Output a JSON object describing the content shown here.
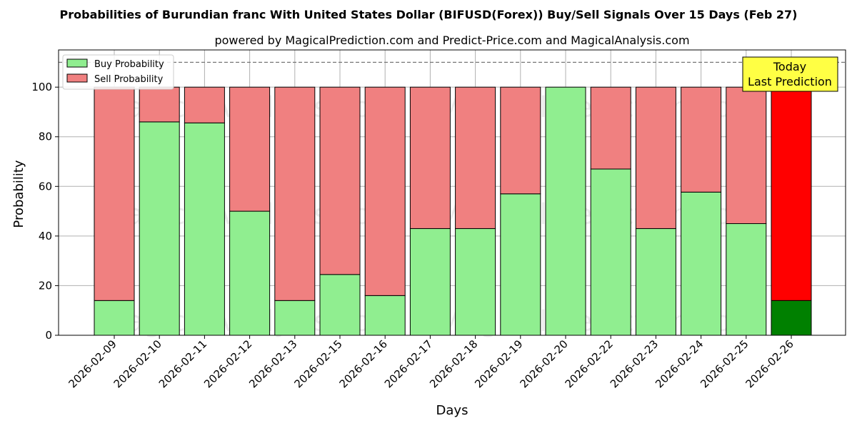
{
  "chart_data": {
    "type": "bar",
    "stacked": true,
    "title": "Probabilities of Burundian franc With United States Dollar (BIFUSD(Forex)) Buy/Sell Signals Over 15 Days (Feb 27)",
    "subtitle": "powered by MagicalPrediction.com and Predict-Price.com and MagicalAnalysis.com",
    "xlabel": "Days",
    "ylabel": "Probability",
    "ylim": [
      0,
      115
    ],
    "yticks": [
      0,
      20,
      40,
      60,
      80,
      100
    ],
    "reference_line": 110,
    "grid": true,
    "legend_position": "top-left",
    "categories": [
      "2026-02-09",
      "2026-02-10",
      "2026-02-11",
      "2026-02-12",
      "2026-02-13",
      "2026-02-15",
      "2026-02-16",
      "2026-02-17",
      "2026-02-18",
      "2026-02-19",
      "2026-02-20",
      "2026-02-22",
      "2026-02-23",
      "2026-02-24",
      "2026-02-25",
      "2026-02-26"
    ],
    "series": [
      {
        "name": "Buy Probability",
        "color": "#90ee90",
        "values": [
          14,
          86,
          85.6,
          50,
          14,
          24.5,
          16,
          43,
          43,
          57,
          100,
          67,
          43,
          57.7,
          45,
          14
        ]
      },
      {
        "name": "Sell Probability",
        "color": "#f08080",
        "values": [
          86,
          14,
          14.4,
          50,
          86,
          75.5,
          84,
          57,
          57,
          43,
          0,
          33,
          57,
          42.3,
          55,
          86
        ]
      }
    ],
    "highlight": {
      "index": 15,
      "buy_color": "#008000",
      "sell_color": "#ff0000",
      "label_line1": "Today",
      "label_line2": "Last Prediction",
      "box_color": "#ffff44"
    },
    "watermarks": [
      "MagicalAnalysis.com",
      "MagicalPrediction.com"
    ]
  }
}
